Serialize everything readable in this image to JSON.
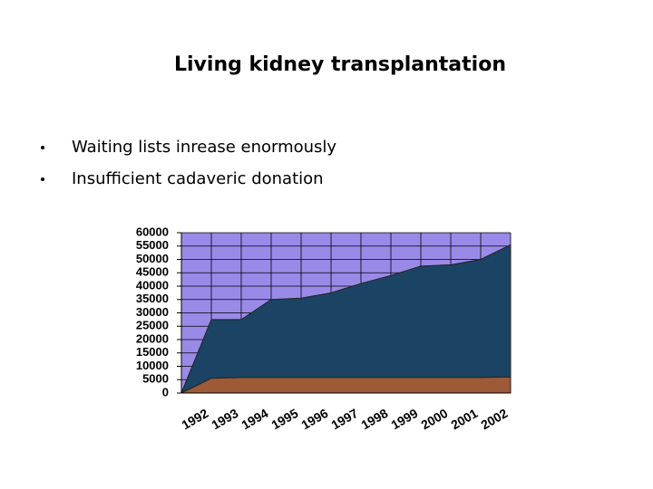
{
  "header": {
    "title": "Living kidney transplantation"
  },
  "bullets": [
    "Waiting lists inrease enormously",
    "Insufficient cadaveric donation"
  ],
  "chart_data": {
    "type": "area",
    "categories": [
      null,
      "1992",
      "1993",
      "1994",
      "1995",
      "1996",
      "1997",
      "1998",
      "1999",
      "2000",
      "2001",
      "2002"
    ],
    "series": [
      {
        "color": "#1b4464",
        "values": [
          0,
          27500,
          27500,
          35000,
          35500,
          37500,
          41000,
          44000,
          47500,
          48000,
          50000,
          55500
        ]
      },
      {
        "color": "#9c5a37",
        "values": [
          0,
          5500,
          5800,
          5800,
          5800,
          5800,
          5800,
          5800,
          5800,
          5800,
          5800,
          6000
        ]
      }
    ],
    "background": "#9a8ae8",
    "ylim": [
      0,
      60000
    ],
    "yticks": [
      0,
      5000,
      10000,
      15000,
      20000,
      25000,
      30000,
      35000,
      40000,
      45000,
      50000,
      55000,
      60000
    ],
    "grid": true
  }
}
